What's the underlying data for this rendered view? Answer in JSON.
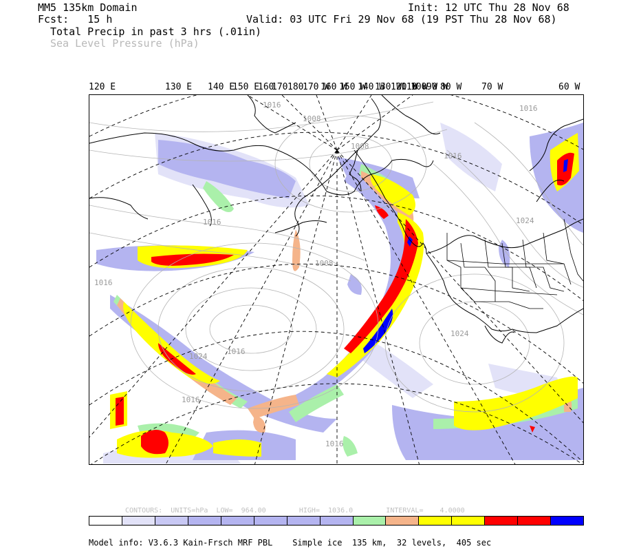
{
  "header": {
    "domain": "MM5 135km Domain",
    "fcst": "Fcst:   15 h",
    "init": "Init: 12 UTC Thu 28 Nov 68",
    "valid": "Valid: 03 UTC Fri 29 Nov 68 (19 PST Thu 28 Nov 68)",
    "field1": "Total Precip in past 3 hrs (.01in)",
    "field2": "Sea Level Pressure (hPa)"
  },
  "longitude_labels": [
    "120 E",
    "130 E",
    "140 E",
    "150 E",
    "160",
    "170",
    "180",
    "170 W",
    "160 W",
    "150 W",
    "140 W",
    "130 W",
    "120 W",
    "110 W",
    "100 W",
    "90 W",
    "80 W",
    "70 W",
    "60 W"
  ],
  "isobar_labels": [
    "1016",
    "1008",
    "1008",
    "1016",
    "1016",
    "1008",
    "1016",
    "1016",
    "1024",
    "1024",
    "1016",
    "1024",
    "1016",
    "1016"
  ],
  "contour_info": "CONTOURS:  UNITS=hPa  LOW=  964.00        HIGH=  1036.0        INTERVAL=    4.0000",
  "colorbar": {
    "colors": [
      "#ffffff",
      "#e2e2f8",
      "#c8c8f4",
      "#b4b4f0",
      "#b4b4f0",
      "#b4b4f0",
      "#b4b4f0",
      "#b4b4f0",
      "#aaf0aa",
      "#f5b48a",
      "#ffff00",
      "#ffff00",
      "#ff0000",
      "#ff0000",
      "#0000ff"
    ]
  },
  "model_info": "Model info: V3.6.3 Kain-Frsch MRF PBL    Simple ice  135 km,  32 levels,  405 sec",
  "legend_colors": {
    "light_lavender": "#e2e2f8",
    "lavender": "#b4b4f0",
    "green": "#aaf0aa",
    "orange": "#f5b48a",
    "yellow": "#ffff00",
    "red": "#ff0000",
    "blue": "#0000ff"
  }
}
